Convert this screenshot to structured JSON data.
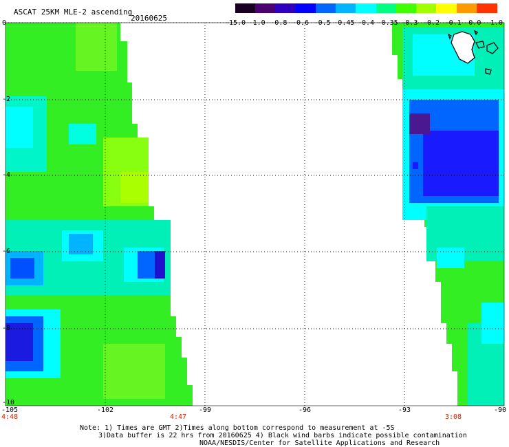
{
  "header": {
    "title": "ASCAT 25KM MLE-2 ascending",
    "date": "20160625"
  },
  "colorbar": {
    "labels": [
      "-15.0",
      "-1.0",
      "-0.8",
      "-0.6",
      "-0.5",
      "-0.45",
      "-0.4",
      "-0.35",
      "-0.3",
      "-0.2",
      "-0.1",
      "0.0",
      "1.0"
    ],
    "colors": [
      "#1a0020",
      "#4a0070",
      "#3000c0",
      "#0000ff",
      "#0066ff",
      "#00b4ff",
      "#00ffff",
      "#00ff80",
      "#40ff00",
      "#a0ff00",
      "#ffff00",
      "#ff9900",
      "#ff3300"
    ]
  },
  "axes": {
    "lat_labels": [
      "0",
      "-2",
      "-4",
      "-6",
      "-8",
      "-10"
    ],
    "lon_labels": [
      "-105",
      "-102",
      "-99",
      "-96",
      "-93",
      "-90"
    ],
    "time_labels": [
      "4:48",
      "4:47",
      "3:08"
    ]
  },
  "footer": {
    "line1": "Note: 1) Times are GMT 2)Times along bottom correspond to measurement at -5S",
    "line2": "3)Data buffer is 22 hrs from 20160625 4) Black wind barbs indicate possible contamination",
    "line3": "NOAA/NESDIS/Center for Satellite Applications and Research"
  },
  "map": {
    "lat_range": [
      -10,
      0
    ],
    "lon_range": [
      -105,
      -90
    ],
    "grid": true,
    "swath_colors": {
      "green": "#33ee22",
      "lightgreen": "#77ff22",
      "yellowgreen": "#aaff00",
      "cyan": "#00ffee",
      "teal": "#00e8b0",
      "blue": "#1a2cff",
      "deepblue": "#1010e0",
      "purple": "#5a20a0"
    }
  }
}
